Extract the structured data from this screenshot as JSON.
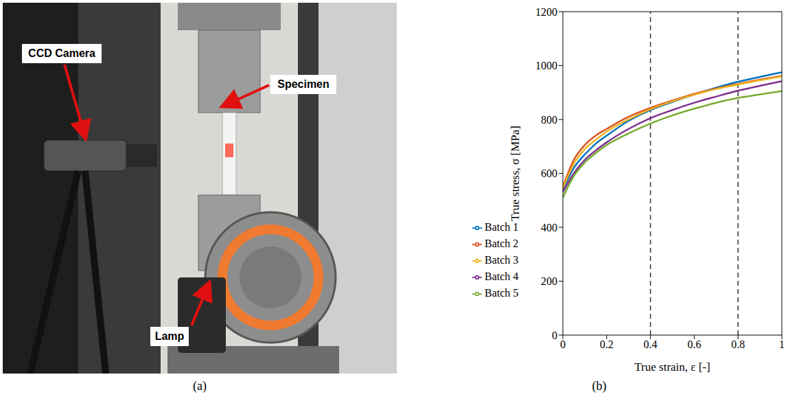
{
  "photo": {
    "caption": "(a)",
    "labels": [
      "CCD Camera",
      "Specimen",
      "Lamp"
    ]
  },
  "chart_data": {
    "type": "line",
    "caption": "(b)",
    "x_label": "True strain, ε [-]",
    "y_label": "True stress, σ [MPa]",
    "x": [
      0,
      0.05,
      0.1,
      0.15,
      0.2,
      0.3,
      0.4,
      0.5,
      0.6,
      0.7,
      0.8,
      0.9,
      1
    ],
    "xlim": [
      0,
      1
    ],
    "xticks": [
      0,
      0.2,
      0.4,
      0.6,
      0.8,
      1
    ],
    "ylim": [
      0,
      1200
    ],
    "yticks": [
      0,
      200,
      400,
      600,
      800,
      1000,
      1200
    ],
    "vlines": [
      0.4,
      0.8
    ],
    "legend": "lower left",
    "grid": false,
    "series": [
      {
        "name": "Batch 1",
        "color": "#0072BD",
        "values": [
          540,
          620,
          670,
          710,
          740,
          795,
          835,
          865,
          893,
          918,
          940,
          958,
          975
        ]
      },
      {
        "name": "Batch 2",
        "color": "#D95319",
        "values": [
          550,
          650,
          705,
          740,
          765,
          810,
          843,
          870,
          895,
          915,
          932,
          948,
          962
        ]
      },
      {
        "name": "Batch 3",
        "color": "#EDB120",
        "values": [
          545,
          635,
          690,
          725,
          755,
          800,
          838,
          867,
          892,
          913,
          930,
          945,
          960
        ]
      },
      {
        "name": "Batch 4",
        "color": "#7E2F8E",
        "values": [
          530,
          600,
          650,
          685,
          715,
          765,
          805,
          835,
          862,
          885,
          907,
          925,
          942
        ]
      },
      {
        "name": "Batch 5",
        "color": "#77AC30",
        "values": [
          510,
          590,
          640,
          675,
          705,
          748,
          785,
          815,
          840,
          862,
          880,
          893,
          905
        ]
      }
    ]
  }
}
